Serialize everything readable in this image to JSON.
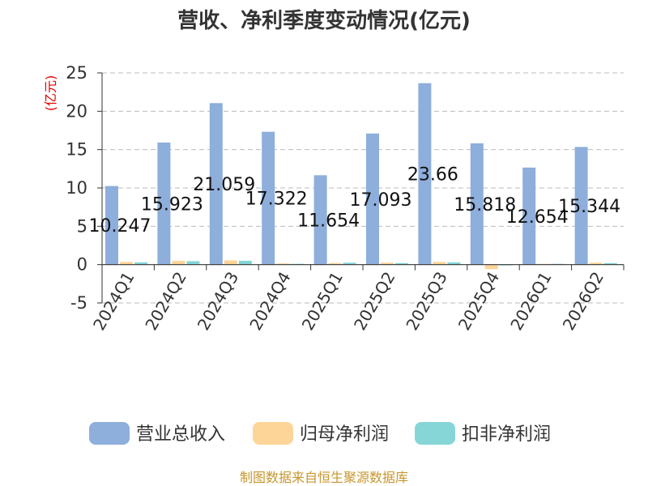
{
  "chart_data": {
    "type": "bar",
    "title": "营收、净利季度变动情况(亿元)",
    "ylabel": "(亿元)",
    "ylim": [
      -5,
      25
    ],
    "yticks": [
      -5,
      0,
      5,
      10,
      15,
      20,
      25
    ],
    "grid": true,
    "legend_position": "bottom",
    "categories": [
      "2024Q1",
      "2024Q2",
      "2024Q3",
      "2024Q4",
      "2025Q1",
      "2025Q2",
      "2025Q3",
      "2025Q4",
      "2026Q1",
      "2026Q2"
    ],
    "series": [
      {
        "name": "营业总收入",
        "color": "#8eaedb",
        "values": [
          10.247,
          15.923,
          21.059,
          17.322,
          11.654,
          17.093,
          23.66,
          15.818,
          12.654,
          15.344
        ],
        "labels": [
          "10.247",
          "15.923",
          "21.059",
          "17.322",
          "11.654",
          "17.093",
          "23.66",
          "15.818",
          "12.654",
          "15.344"
        ]
      },
      {
        "name": "归母净利润",
        "color": "#fdd598",
        "values": [
          0.35,
          0.5,
          0.55,
          0.15,
          0.2,
          0.25,
          0.35,
          -0.6,
          0.1,
          0.25
        ]
      },
      {
        "name": "扣非净利润",
        "color": "#86d6d8",
        "values": [
          0.3,
          0.45,
          0.5,
          0.1,
          0.25,
          0.2,
          0.3,
          -0.1,
          0.1,
          0.2
        ]
      }
    ],
    "source": "制图数据来自恒生聚源数据库"
  }
}
